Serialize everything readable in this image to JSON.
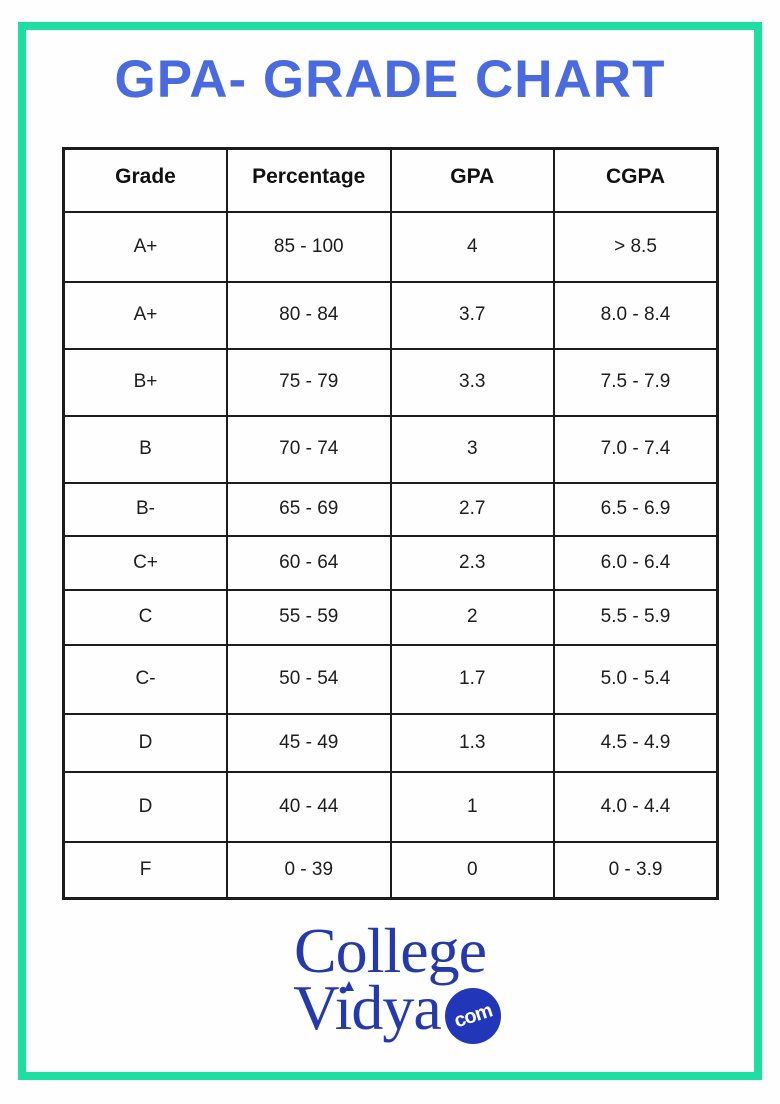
{
  "colors": {
    "frame": "#1CDFA0",
    "title": "#4A6BE0",
    "logo": "#2539AE",
    "badge": "#2136B8",
    "table_line": "#1C1C1C",
    "text": "#1D1D1D"
  },
  "page": {
    "title": "GPA- GRADE CHART"
  },
  "chart_data": {
    "type": "table",
    "title": "GPA- GRADE CHART",
    "columns": [
      "Grade",
      "Percentage",
      "GPA",
      "CGPA"
    ],
    "rows": [
      [
        "A+",
        "85 - 100",
        "4",
        "> 8.5"
      ],
      [
        "A+",
        "80 - 84",
        "3.7",
        "8.0 - 8.4"
      ],
      [
        "B+",
        "75 - 79",
        "3.3",
        "7.5 - 7.9"
      ],
      [
        "B",
        "70 - 74",
        "3",
        "7.0 - 7.4"
      ],
      [
        "B-",
        "65 - 69",
        "2.7",
        "6.5 - 6.9"
      ],
      [
        "C+",
        "60 - 64",
        "2.3",
        "6.0 - 6.4"
      ],
      [
        "C",
        "55 - 59",
        "2",
        "5.5 - 5.9"
      ],
      [
        "C-",
        "50 - 54",
        "1.7",
        "5.0 - 5.4"
      ],
      [
        "D",
        "45 - 49",
        "1.3",
        "4.5 - 4.9"
      ],
      [
        "D",
        "40 - 44",
        "1",
        "4.0 - 4.4"
      ],
      [
        "F",
        "0 - 39",
        "0",
        "0 - 3.9"
      ]
    ]
  },
  "logo": {
    "line1": "College",
    "line2": "Vidya",
    "badge": "com"
  }
}
